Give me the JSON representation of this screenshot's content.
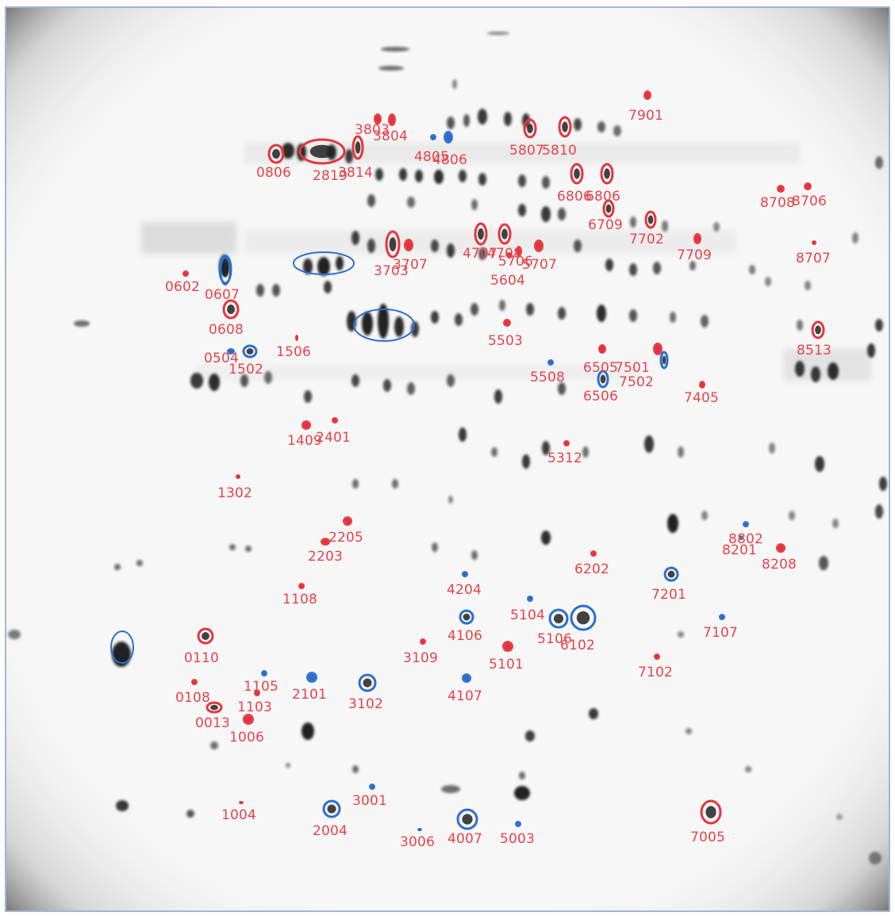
{
  "colors": {
    "upregulated": "#e8343c",
    "downregulated": "#2a6fd0",
    "label": "#e8434b",
    "spot": "#141414",
    "frame": "#9fb8d0"
  },
  "spots": [
    {
      "id": "7901",
      "group": "red"
    },
    {
      "id": "3803",
      "group": "red"
    },
    {
      "id": "3804",
      "group": "red"
    },
    {
      "id": "4805",
      "group": "blue"
    },
    {
      "id": "4806",
      "group": "blue"
    },
    {
      "id": "5807",
      "group": "red"
    },
    {
      "id": "5810",
      "group": "red"
    },
    {
      "id": "0806",
      "group": "red"
    },
    {
      "id": "2819",
      "group": "red"
    },
    {
      "id": "3814",
      "group": "red"
    },
    {
      "id": "6806",
      "group": "red"
    },
    {
      "id": "6806",
      "group": "red"
    },
    {
      "id": "8708",
      "group": "red"
    },
    {
      "id": "8706",
      "group": "red"
    },
    {
      "id": "6709",
      "group": "red"
    },
    {
      "id": "7702",
      "group": "red"
    },
    {
      "id": "4707",
      "group": "red"
    },
    {
      "id": "4708",
      "group": "red"
    },
    {
      "id": "5706",
      "group": "red"
    },
    {
      "id": "5707",
      "group": "red"
    },
    {
      "id": "3707",
      "group": "red"
    },
    {
      "id": "3703",
      "group": "red"
    },
    {
      "id": "7709",
      "group": "red"
    },
    {
      "id": "8707",
      "group": "red"
    },
    {
      "id": "5604",
      "group": "red"
    },
    {
      "id": "0602",
      "group": "red"
    },
    {
      "id": "0607",
      "group": "blue"
    },
    {
      "id": "0608",
      "group": "red"
    },
    {
      "id": "5503",
      "group": "red"
    },
    {
      "id": "8513",
      "group": "red"
    },
    {
      "id": "1506",
      "group": "red"
    },
    {
      "id": "0504",
      "group": "blue"
    },
    {
      "id": "1502",
      "group": "blue"
    },
    {
      "id": "6505",
      "group": "red"
    },
    {
      "id": "7501",
      "group": "red"
    },
    {
      "id": "5508",
      "group": "blue"
    },
    {
      "id": "7502",
      "group": "blue"
    },
    {
      "id": "6506",
      "group": "blue"
    },
    {
      "id": "7405",
      "group": "red"
    },
    {
      "id": "1409",
      "group": "red"
    },
    {
      "id": "2401",
      "group": "red"
    },
    {
      "id": "5312",
      "group": "red"
    },
    {
      "id": "1302",
      "group": "red"
    },
    {
      "id": "2205",
      "group": "red"
    },
    {
      "id": "8802",
      "group": "blue"
    },
    {
      "id": "8201",
      "group": "blue"
    },
    {
      "id": "8208",
      "group": "red"
    },
    {
      "id": "2203",
      "group": "red"
    },
    {
      "id": "6202",
      "group": "red"
    },
    {
      "id": "7201",
      "group": "blue"
    },
    {
      "id": "4204",
      "group": "blue"
    },
    {
      "id": "1108",
      "group": "red"
    },
    {
      "id": "5104",
      "group": "blue"
    },
    {
      "id": "7107",
      "group": "blue"
    },
    {
      "id": "4106",
      "group": "blue"
    },
    {
      "id": "5106",
      "group": "blue"
    },
    {
      "id": "6102",
      "group": "blue"
    },
    {
      "id": "0110",
      "group": "red"
    },
    {
      "id": "3109",
      "group": "red"
    },
    {
      "id": "5101",
      "group": "red"
    },
    {
      "id": "7102",
      "group": "red"
    },
    {
      "id": "1105",
      "group": "blue"
    },
    {
      "id": "0108",
      "group": "red"
    },
    {
      "id": "2101",
      "group": "blue"
    },
    {
      "id": "3102",
      "group": "blue"
    },
    {
      "id": "4107",
      "group": "blue"
    },
    {
      "id": "1103",
      "group": "red"
    },
    {
      "id": "0013",
      "group": "red"
    },
    {
      "id": "1006",
      "group": "red"
    },
    {
      "id": "3001",
      "group": "blue"
    },
    {
      "id": "1004",
      "group": "red"
    },
    {
      "id": "2004",
      "group": "blue"
    },
    {
      "id": "3006",
      "group": "blue"
    },
    {
      "id": "4007",
      "group": "blue"
    },
    {
      "id": "5003",
      "group": "blue"
    },
    {
      "id": "7005",
      "group": "red"
    }
  ]
}
